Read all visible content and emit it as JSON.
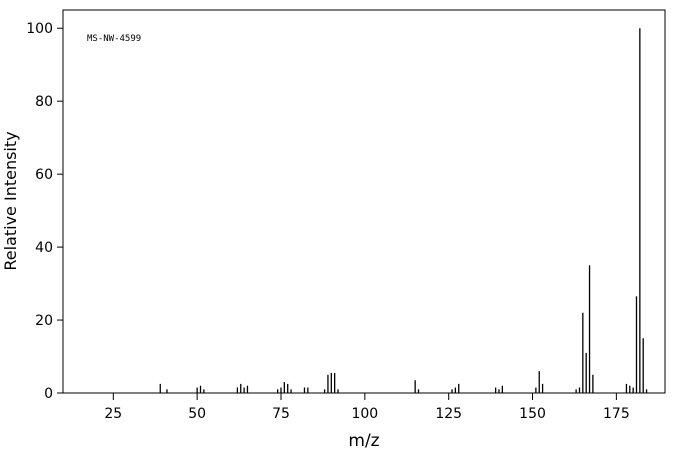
{
  "chart_data": {
    "type": "stem",
    "annotation": "MS-NW-4599",
    "x_label": "m/z",
    "y_label": "Relative Intensity",
    "x": [
      39,
      41,
      50,
      51,
      52,
      62,
      63,
      64,
      65,
      74,
      75,
      76,
      77,
      78,
      82,
      83,
      88,
      89,
      90,
      91,
      92,
      115,
      116,
      126,
      127,
      128,
      139,
      140,
      141,
      151,
      152,
      153,
      163,
      164,
      165,
      166,
      167,
      168,
      178,
      179,
      180,
      181,
      182,
      183,
      184
    ],
    "values": [
      2.5,
      1,
      1.5,
      2,
      1,
      1.5,
      2.5,
      1.5,
      2,
      1,
      1.5,
      3,
      2.5,
      1,
      1.5,
      1.5,
      1,
      5,
      5.5,
      5.5,
      1,
      3.5,
      1,
      1,
      1.5,
      2.5,
      1.5,
      1,
      2,
      1.5,
      6,
      2.5,
      1,
      1.5,
      22,
      11,
      35,
      5,
      2.5,
      2,
      1.5,
      26.5,
      100,
      15,
      1
    ],
    "color": "#000000",
    "xlim": [
      10,
      189.5
    ],
    "xticks": [
      25,
      50,
      75,
      100,
      125,
      150,
      175
    ],
    "ylim": [
      0,
      105
    ],
    "yticks": [
      0,
      20,
      40,
      60,
      80,
      100
    ]
  }
}
